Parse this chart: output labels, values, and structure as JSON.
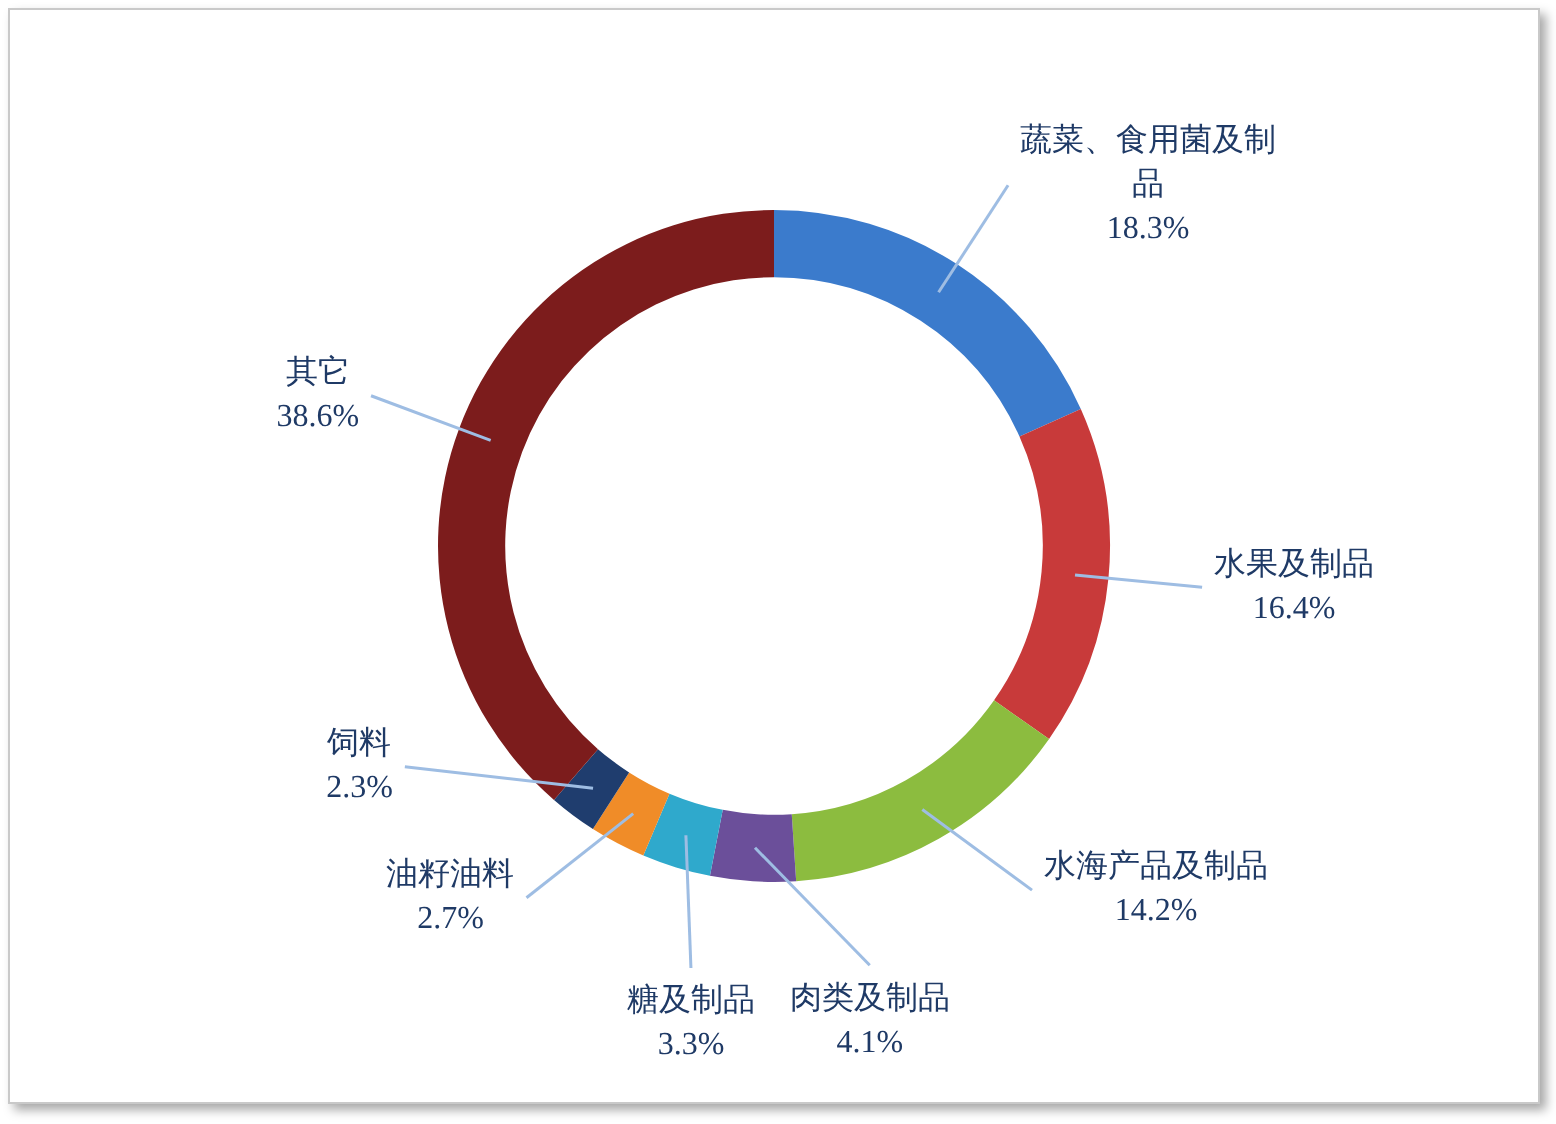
{
  "chart_data": {
    "type": "donut",
    "categories": [
      "蔬菜、食用菌及制品",
      "水果及制品",
      "水海产品及制品",
      "肉类及制品",
      "糖及制品",
      "油籽油料",
      "饲料",
      "其它"
    ],
    "values": [
      18.3,
      16.4,
      14.2,
      4.1,
      3.3,
      2.7,
      2.3,
      38.6
    ],
    "value_labels": [
      "18.3%",
      "16.4%",
      "14.2%",
      "4.1%",
      "3.3%",
      "2.7%",
      "2.3%",
      "38.6%"
    ],
    "colors": [
      "#3b7bcc",
      "#c83a3a",
      "#8cbc3f",
      "#6b4f9a",
      "#2fa9cc",
      "#f08c28",
      "#1f3d6e",
      "#7c1c1c"
    ]
  }
}
